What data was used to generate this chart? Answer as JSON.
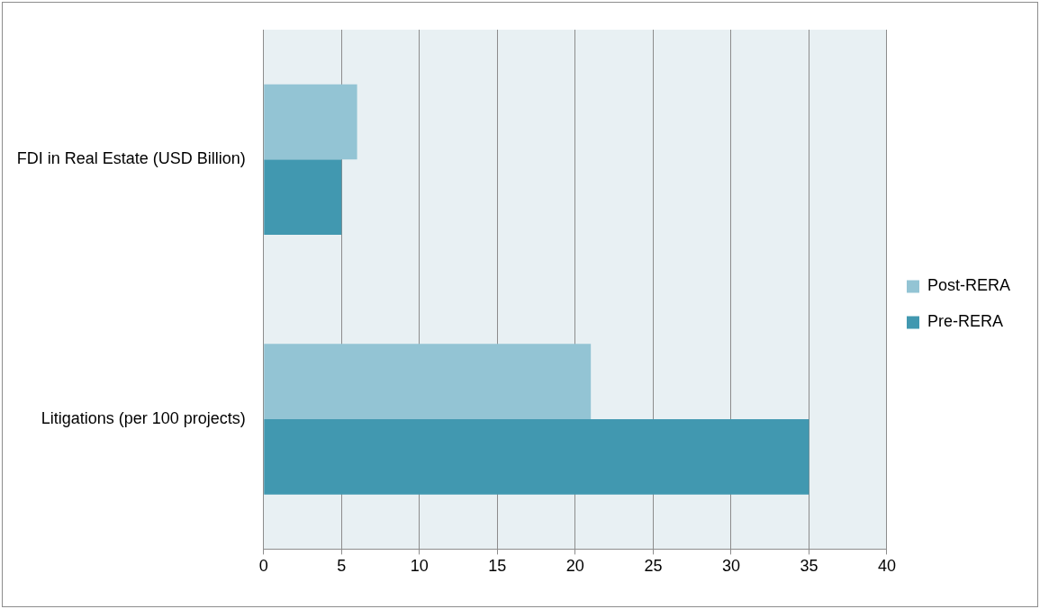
{
  "chart_data": {
    "type": "bar",
    "orientation": "horizontal",
    "categories": [
      "FDI in Real Estate (USD Billion)",
      "Litigations (per 100 projects)"
    ],
    "series": [
      {
        "name": "Post-RERA",
        "color": "#93c4d4",
        "values": [
          6,
          21
        ]
      },
      {
        "name": "Pre-RERA",
        "color": "#4198b0",
        "values": [
          5,
          35
        ]
      }
    ],
    "xlim": [
      0,
      40
    ],
    "xticks": [
      0,
      5,
      10,
      15,
      20,
      25,
      30,
      35,
      40
    ],
    "grid": "x",
    "legend": "right"
  }
}
